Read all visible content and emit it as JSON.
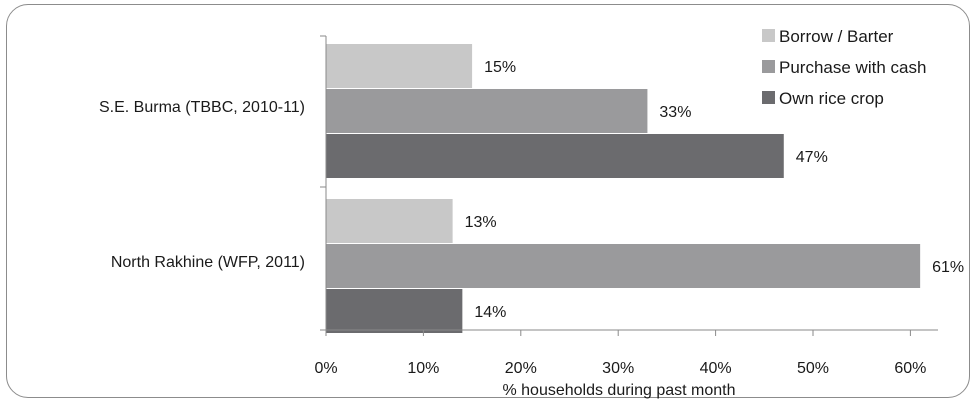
{
  "chart_data": {
    "type": "bar",
    "orientation": "horizontal",
    "categories": [
      "S.E. Burma (TBBC, 2010-11)",
      "North Rakhine (WFP, 2011)"
    ],
    "series": [
      {
        "name": "Borrow / Barter",
        "values": [
          15,
          13
        ],
        "color": "#c8c8c8"
      },
      {
        "name": "Purchase with cash",
        "values": [
          33,
          61
        ],
        "color": "#9a9a9c"
      },
      {
        "name": "Own rice crop",
        "values": [
          47,
          14
        ],
        "color": "#6b6b6e"
      }
    ],
    "data_labels": [
      [
        "15%",
        "13%"
      ],
      [
        "33%",
        "61%"
      ],
      [
        "47%",
        "14%"
      ]
    ],
    "xlabel": "% households during past month",
    "ylabel": "",
    "title": "",
    "xlim": [
      0,
      65
    ],
    "xticks": [
      0,
      10,
      20,
      30,
      40,
      50,
      60
    ],
    "xtick_labels": [
      "0%",
      "10%",
      "20%",
      "30%",
      "40%",
      "50%",
      "60%"
    ],
    "grid": false,
    "legend_position": "top-right"
  }
}
